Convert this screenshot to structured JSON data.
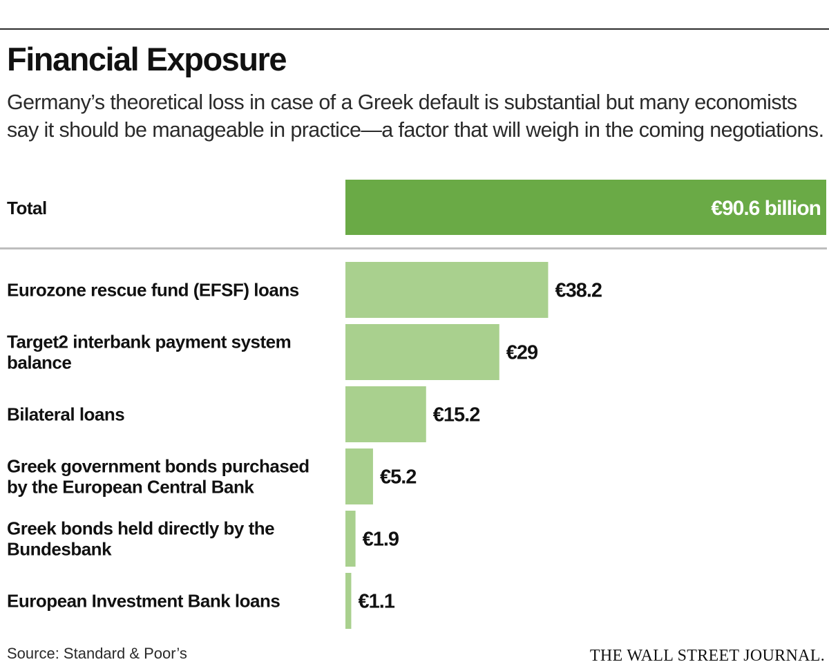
{
  "title": "Financial Exposure",
  "subtitle": "Germany’s theoretical loss in case of a Greek default is substantial but many economists say it should be manageable in practice—a factor that will weigh in the coming negotiations.",
  "source": "Source: Standard & Poor’s",
  "publisher": "THE WALL STREET JOURNAL.",
  "colors": {
    "total_bar": "#6aaa46",
    "component_bar": "#a9d08e",
    "divider": "#bdbdbd"
  },
  "chart_data": {
    "type": "bar",
    "orientation": "horizontal",
    "unit": "€ billion",
    "total": {
      "category": "Total",
      "value": 90.6,
      "label": "€90.6 billion"
    },
    "categories": [
      [
        "Eurozone rescue fund (EFSF) loans"
      ],
      [
        "Target2 interbank payment system",
        "balance"
      ],
      [
        "Bilateral loans"
      ],
      [
        "Greek government bonds purchased",
        "by the European Central Bank"
      ],
      [
        "Greek bonds held directly by the",
        "Bundesbank"
      ],
      [
        "European Investment Bank loans"
      ]
    ],
    "values": [
      38.2,
      29,
      15.2,
      5.2,
      1.9,
      1.1
    ],
    "value_labels": [
      "€38.2",
      "€29",
      "€15.2",
      "€5.2",
      "€1.9",
      "€1.1"
    ],
    "xlim": [
      0,
      90.6
    ],
    "grid": false,
    "legend": "none"
  }
}
